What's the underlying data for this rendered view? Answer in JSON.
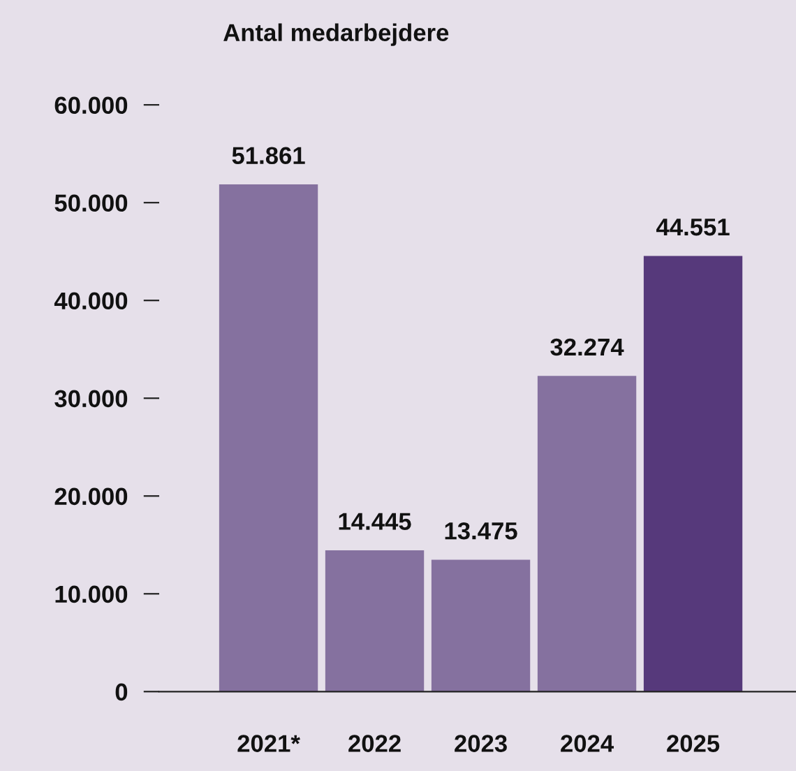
{
  "chart_data": {
    "type": "bar",
    "title": "Antal medarbejdere",
    "categories": [
      "2021*",
      "2022",
      "2023",
      "2024",
      "2025"
    ],
    "values": [
      51861,
      14445,
      13475,
      32274,
      44551
    ],
    "value_labels": [
      "51.861",
      "14.445",
      "13.475",
      "32.274",
      "44.551"
    ],
    "colors": [
      "#85719f",
      "#85719f",
      "#85719f",
      "#85719f",
      "#56397b"
    ],
    "ylim": [
      0,
      60000
    ],
    "yticks": [
      {
        "value": 0,
        "label": "0"
      },
      {
        "value": 10000,
        "label": "10.000"
      },
      {
        "value": 20000,
        "label": "20.000"
      },
      {
        "value": 30000,
        "label": "30.000"
      },
      {
        "value": 40000,
        "label": "40.000"
      },
      {
        "value": 50000,
        "label": "50.000"
      },
      {
        "value": 60000,
        "label": "60.000"
      }
    ],
    "grid": false,
    "legend": false
  }
}
